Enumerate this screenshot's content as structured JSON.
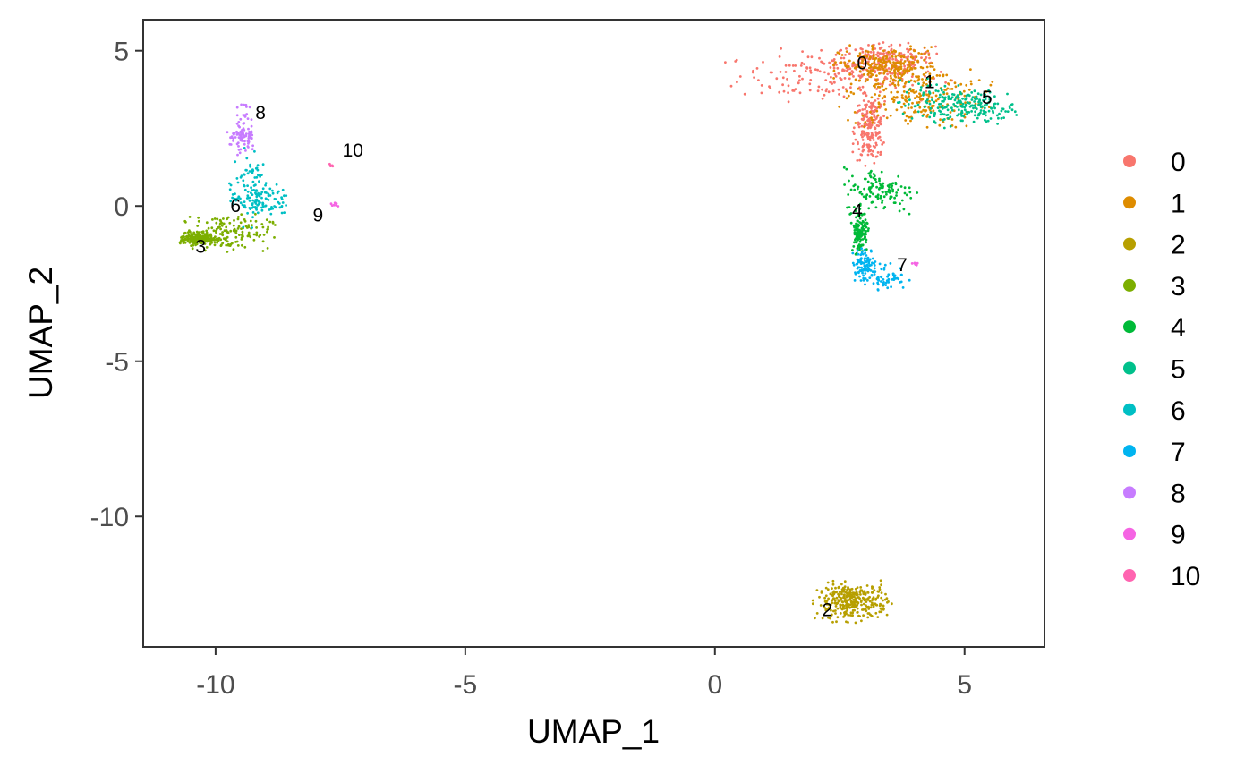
{
  "chart_data": {
    "type": "scatter",
    "title": "",
    "xlabel": "UMAP_1",
    "ylabel": "UMAP_2",
    "xlim": [
      -11.45,
      6.6
    ],
    "ylim": [
      -14.2,
      6.0
    ],
    "x_ticks": [
      -10,
      -5,
      0,
      5
    ],
    "x_tick_labels": [
      "-10",
      "-5",
      "0",
      "5"
    ],
    "y_ticks": [
      5,
      0,
      -5,
      -10
    ],
    "y_tick_labels": [
      "5",
      "0",
      "-5",
      "-10"
    ],
    "grid": false,
    "legend_position": "right",
    "series": [
      {
        "name": "0",
        "color": "#F8766D",
        "points_approx": 600,
        "blobs": [
          {
            "x": 2.5,
            "y": 4.2,
            "sx": 1.0,
            "sy": 0.4
          },
          {
            "x": 3.4,
            "y": 4.7,
            "sx": 0.5,
            "sy": 0.25
          },
          {
            "x": 3.1,
            "y": 2.5,
            "sx": 0.15,
            "sy": 0.5
          }
        ]
      },
      {
        "name": "1",
        "color": "#DE8C00",
        "points_approx": 450,
        "blobs": [
          {
            "x": 4.0,
            "y": 3.5,
            "sx": 0.7,
            "sy": 0.5
          },
          {
            "x": 3.5,
            "y": 4.5,
            "sx": 0.5,
            "sy": 0.3
          }
        ]
      },
      {
        "name": "2",
        "color": "#B79F00",
        "points_approx": 330,
        "blobs": [
          {
            "x": 2.75,
            "y": -12.75,
            "sx": 0.35,
            "sy": 0.3
          }
        ]
      },
      {
        "name": "3",
        "color": "#7CAE00",
        "points_approx": 330,
        "blobs": [
          {
            "x": -9.8,
            "y": -0.85,
            "sx": 0.45,
            "sy": 0.28
          },
          {
            "x": -10.35,
            "y": -1.05,
            "sx": 0.18,
            "sy": 0.1
          }
        ]
      },
      {
        "name": "4",
        "color": "#00BA38",
        "points_approx": 260,
        "blobs": [
          {
            "x": 3.3,
            "y": 0.5,
            "sx": 0.35,
            "sy": 0.35
          },
          {
            "x": 2.9,
            "y": -0.8,
            "sx": 0.08,
            "sy": 0.35
          }
        ]
      },
      {
        "name": "5",
        "color": "#00C08B",
        "points_approx": 230,
        "blobs": [
          {
            "x": 5.3,
            "y": 3.2,
            "sx": 0.35,
            "sy": 0.25
          },
          {
            "x": 4.5,
            "y": 3.3,
            "sx": 0.4,
            "sy": 0.35
          }
        ]
      },
      {
        "name": "6",
        "color": "#00BFC4",
        "points_approx": 160,
        "blobs": [
          {
            "x": -9.3,
            "y": 0.6,
            "sx": 0.18,
            "sy": 0.6
          },
          {
            "x": -9.1,
            "y": 0.2,
            "sx": 0.3,
            "sy": 0.25
          }
        ]
      },
      {
        "name": "7",
        "color": "#00B4F0",
        "points_approx": 160,
        "blobs": [
          {
            "x": 3.35,
            "y": -2.3,
            "sx": 0.25,
            "sy": 0.2
          },
          {
            "x": 3.0,
            "y": -1.8,
            "sx": 0.12,
            "sy": 0.2
          }
        ]
      },
      {
        "name": "8",
        "color": "#C77CFF",
        "points_approx": 100,
        "blobs": [
          {
            "x": -9.45,
            "y": 2.6,
            "sx": 0.08,
            "sy": 0.45
          },
          {
            "x": -9.5,
            "y": 2.2,
            "sx": 0.15,
            "sy": 0.2
          }
        ]
      },
      {
        "name": "9",
        "color": "#F564E3",
        "points_approx": 14,
        "blobs": [
          {
            "x": -7.6,
            "y": 0.05,
            "sx": 0.06,
            "sy": 0.04
          },
          {
            "x": 4.0,
            "y": -1.85,
            "sx": 0.04,
            "sy": 0.04
          }
        ]
      },
      {
        "name": "10",
        "color": "#FF64B0",
        "points_approx": 5,
        "blobs": [
          {
            "x": -7.7,
            "y": 1.3,
            "sx": 0.03,
            "sy": 0.03
          }
        ]
      }
    ],
    "cluster_labels": [
      {
        "text": "0",
        "x": 2.95,
        "y": 4.6
      },
      {
        "text": "1",
        "x": 4.3,
        "y": 4.0
      },
      {
        "text": "5",
        "x": 5.45,
        "y": 3.5
      },
      {
        "text": "8",
        "x": -9.1,
        "y": 3.0
      },
      {
        "text": "10",
        "x": -7.25,
        "y": 1.8
      },
      {
        "text": "6",
        "x": -9.6,
        "y": 0.0
      },
      {
        "text": "9",
        "x": -7.95,
        "y": -0.3
      },
      {
        "text": "3",
        "x": -10.3,
        "y": -1.3
      },
      {
        "text": "4",
        "x": 2.85,
        "y": -0.15
      },
      {
        "text": "7",
        "x": 3.75,
        "y": -1.9
      },
      {
        "text": "2",
        "x": 2.25,
        "y": -13.0
      }
    ]
  }
}
